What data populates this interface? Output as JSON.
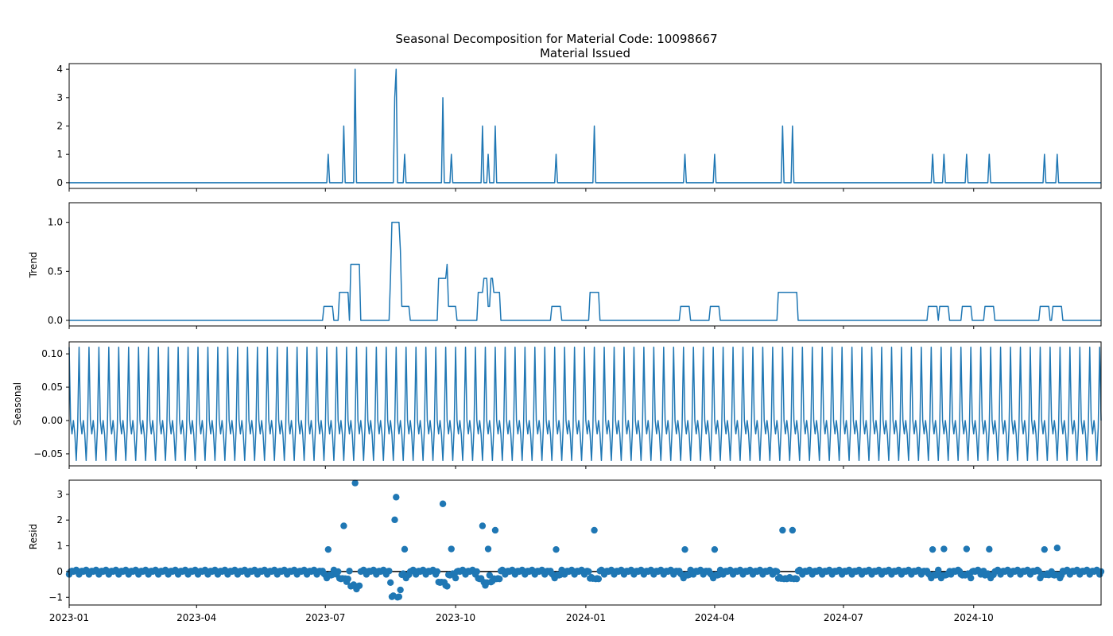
{
  "figure": {
    "suptitle": "Seasonal Decomposition for Material Code: 10098667",
    "line_color": "#1f77b4",
    "axis_color": "#000000"
  },
  "chart_data": [
    {
      "type": "line",
      "title": "Material Issued",
      "ylabel": "",
      "ylim": [
        -0.2,
        4.2
      ],
      "yticks": [
        0,
        1,
        2,
        3,
        4
      ],
      "ytick_labels": [
        "0",
        "1",
        "2",
        "3",
        "4"
      ],
      "xlim": [
        "2023-01-01",
        "2024-12-30"
      ],
      "baseline": 0,
      "spikes": [
        {
          "date": "2023-07-03",
          "value": 1
        },
        {
          "date": "2023-07-14",
          "value": 2
        },
        {
          "date": "2023-07-22",
          "value": 4
        },
        {
          "date": "2023-08-19",
          "value": 3
        },
        {
          "date": "2023-08-20",
          "value": 4
        },
        {
          "date": "2023-08-26",
          "value": 1
        },
        {
          "date": "2023-09-22",
          "value": 3
        },
        {
          "date": "2023-09-28",
          "value": 1
        },
        {
          "date": "2023-10-20",
          "value": 2
        },
        {
          "date": "2023-10-24",
          "value": 1
        },
        {
          "date": "2023-10-29",
          "value": 2
        },
        {
          "date": "2023-12-11",
          "value": 1
        },
        {
          "date": "2024-01-07",
          "value": 2
        },
        {
          "date": "2024-03-11",
          "value": 1
        },
        {
          "date": "2024-04-01",
          "value": 1
        },
        {
          "date": "2024-05-19",
          "value": 2
        },
        {
          "date": "2024-05-26",
          "value": 2
        },
        {
          "date": "2024-09-02",
          "value": 1
        },
        {
          "date": "2024-09-10",
          "value": 1
        },
        {
          "date": "2024-09-26",
          "value": 1
        },
        {
          "date": "2024-10-12",
          "value": 1
        },
        {
          "date": "2024-11-20",
          "value": 1
        },
        {
          "date": "2024-11-29",
          "value": 1
        }
      ]
    },
    {
      "type": "line",
      "title": "",
      "ylabel": "Trend",
      "ylim": [
        -0.057,
        1.2
      ],
      "yticks": [
        0.0,
        0.5,
        1.0
      ],
      "ytick_labels": [
        "0.0",
        "0.5",
        "1.0"
      ],
      "baseline": 0,
      "window_days": 7,
      "source": "rolling mean of Material Issued"
    },
    {
      "type": "line",
      "title": "",
      "ylabel": "Seasonal",
      "ylim": [
        -0.068,
        0.118
      ],
      "yticks": [
        -0.05,
        0.0,
        0.05,
        0.1
      ],
      "ytick_labels": [
        "−0.05",
        "0.00",
        "0.05",
        "0.10"
      ],
      "period_days": 7,
      "pattern": [
        0.11,
        0.0,
        -0.02,
        0.0,
        -0.02,
        -0.06,
        -0.01
      ]
    },
    {
      "type": "scatter",
      "title": "",
      "ylabel": "Resid",
      "ylim": [
        -1.3,
        3.55
      ],
      "yticks": [
        -1,
        0,
        1,
        2,
        3
      ],
      "ytick_labels": [
        "−1",
        "0",
        "1",
        "2",
        "3"
      ],
      "zero_line": true,
      "source": "Material Issued − Trend − Seasonal"
    }
  ],
  "x_axis": {
    "ticks": [
      "2023-01-01",
      "2023-04-01",
      "2023-07-01",
      "2023-10-01",
      "2024-01-01",
      "2024-04-01",
      "2024-07-01",
      "2024-10-01"
    ],
    "tick_labels": [
      "2023-01",
      "2023-04",
      "2023-07",
      "2023-10",
      "2024-01",
      "2024-04",
      "2024-07",
      "2024-10"
    ]
  }
}
